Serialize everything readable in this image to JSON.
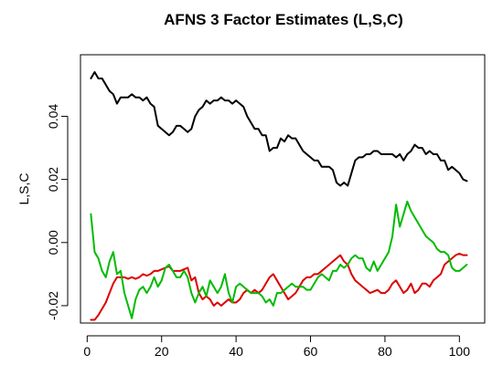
{
  "chart_data": {
    "type": "line",
    "title": "AFNS 3 Factor Estimates (L,S,C)",
    "xlabel": "",
    "ylabel": "L,S,C",
    "xlim": [
      -1.8,
      106.8
    ],
    "ylim": [
      -0.0255,
      0.0595
    ],
    "x_ticks": [
      0,
      20,
      40,
      60,
      80,
      100
    ],
    "x_tick_labels": [
      "0",
      "20",
      "40",
      "60",
      "80",
      "100"
    ],
    "y_ticks": [
      -0.02,
      0.0,
      0.02,
      0.04
    ],
    "y_tick_labels": [
      "-0.02",
      "0.00",
      "0.02",
      "0.04"
    ],
    "grid": false,
    "legend": "none",
    "series": [
      {
        "color": "#000000",
        "x": [
          1,
          2,
          3,
          4,
          5,
          6,
          7,
          8,
          9,
          10,
          11,
          12,
          13,
          14,
          15,
          16,
          17,
          18,
          19,
          20,
          21,
          22,
          23,
          24,
          25,
          26,
          27,
          28,
          29,
          30,
          31,
          32,
          33,
          34,
          35,
          36,
          37,
          38,
          39,
          40,
          41,
          42,
          43,
          44,
          45,
          46,
          47,
          48,
          49,
          50,
          51,
          52,
          53,
          54,
          55,
          56,
          57,
          58,
          59,
          60,
          61,
          62,
          63,
          64,
          65,
          66,
          67,
          68,
          69,
          70,
          71,
          72,
          73,
          74,
          75,
          76,
          77,
          78,
          79,
          80,
          81,
          82,
          83,
          84,
          85,
          86,
          87,
          88,
          89,
          90,
          91,
          92,
          93,
          94,
          95,
          96,
          97,
          98,
          99,
          100,
          101,
          102
        ],
        "values": [
          0.052,
          0.054,
          0.052,
          0.052,
          0.05,
          0.048,
          0.047,
          0.044,
          0.046,
          0.046,
          0.046,
          0.047,
          0.046,
          0.046,
          0.045,
          0.046,
          0.044,
          0.043,
          0.037,
          0.036,
          0.035,
          0.034,
          0.035,
          0.037,
          0.037,
          0.036,
          0.035,
          0.036,
          0.04,
          0.042,
          0.043,
          0.045,
          0.044,
          0.045,
          0.045,
          0.046,
          0.045,
          0.045,
          0.044,
          0.045,
          0.044,
          0.043,
          0.04,
          0.038,
          0.036,
          0.036,
          0.034,
          0.034,
          0.029,
          0.03,
          0.03,
          0.033,
          0.032,
          0.034,
          0.033,
          0.033,
          0.031,
          0.029,
          0.028,
          0.027,
          0.026,
          0.026,
          0.024,
          0.024,
          0.024,
          0.023,
          0.019,
          0.018,
          0.019,
          0.018,
          0.022,
          0.026,
          0.027,
          0.027,
          0.028,
          0.028,
          0.029,
          0.029,
          0.028,
          0.028,
          0.028,
          0.028,
          0.027,
          0.028,
          0.026,
          0.028,
          0.029,
          0.031,
          0.03,
          0.03,
          0.028,
          0.029,
          0.028,
          0.028,
          0.026,
          0.026,
          0.023,
          0.024,
          0.023,
          0.022,
          0.02,
          0.0195
        ]
      },
      {
        "color": "#dd0000",
        "x": [
          1,
          2,
          3,
          4,
          5,
          6,
          7,
          8,
          9,
          10,
          11,
          12,
          13,
          14,
          15,
          16,
          17,
          18,
          19,
          20,
          21,
          22,
          23,
          24,
          25,
          26,
          27,
          28,
          29,
          30,
          31,
          32,
          33,
          34,
          35,
          36,
          37,
          38,
          39,
          40,
          41,
          42,
          43,
          44,
          45,
          46,
          47,
          48,
          49,
          50,
          51,
          52,
          53,
          54,
          55,
          56,
          57,
          58,
          59,
          60,
          61,
          62,
          63,
          64,
          65,
          66,
          67,
          68,
          69,
          70,
          71,
          72,
          73,
          74,
          75,
          76,
          77,
          78,
          79,
          80,
          81,
          82,
          83,
          84,
          85,
          86,
          87,
          88,
          89,
          90,
          91,
          92,
          93,
          94,
          95,
          96,
          97,
          98,
          99,
          100,
          101,
          102
        ],
        "values": [
          -0.0245,
          -0.0245,
          -0.023,
          -0.021,
          -0.019,
          -0.016,
          -0.013,
          -0.011,
          -0.011,
          -0.011,
          -0.0115,
          -0.011,
          -0.0115,
          -0.011,
          -0.01,
          -0.0105,
          -0.01,
          -0.009,
          -0.009,
          -0.0085,
          -0.008,
          -0.0075,
          -0.009,
          -0.009,
          -0.009,
          -0.0085,
          -0.008,
          -0.012,
          -0.011,
          -0.016,
          -0.018,
          -0.017,
          -0.018,
          -0.02,
          -0.019,
          -0.02,
          -0.019,
          -0.018,
          -0.019,
          -0.019,
          -0.018,
          -0.016,
          -0.015,
          -0.016,
          -0.015,
          -0.016,
          -0.015,
          -0.013,
          -0.011,
          -0.01,
          -0.012,
          -0.014,
          -0.016,
          -0.018,
          -0.017,
          -0.016,
          -0.014,
          -0.012,
          -0.011,
          -0.011,
          -0.01,
          -0.01,
          -0.009,
          -0.008,
          -0.007,
          -0.006,
          -0.005,
          -0.004,
          -0.006,
          -0.007,
          -0.01,
          -0.012,
          -0.013,
          -0.014,
          -0.015,
          -0.016,
          -0.0155,
          -0.015,
          -0.016,
          -0.016,
          -0.015,
          -0.013,
          -0.012,
          -0.014,
          -0.016,
          -0.015,
          -0.013,
          -0.016,
          -0.015,
          -0.013,
          -0.013,
          -0.014,
          -0.012,
          -0.011,
          -0.01,
          -0.007,
          -0.006,
          -0.005,
          -0.004,
          -0.0035,
          -0.004,
          -0.004
        ]
      },
      {
        "color": "#00bb00",
        "x": [
          1,
          2,
          3,
          4,
          5,
          6,
          7,
          8,
          9,
          10,
          11,
          12,
          13,
          14,
          15,
          16,
          17,
          18,
          19,
          20,
          21,
          22,
          23,
          24,
          25,
          26,
          27,
          28,
          29,
          30,
          31,
          32,
          33,
          34,
          35,
          36,
          37,
          38,
          39,
          40,
          41,
          42,
          43,
          44,
          45,
          46,
          47,
          48,
          49,
          50,
          51,
          52,
          53,
          54,
          55,
          56,
          57,
          58,
          59,
          60,
          61,
          62,
          63,
          64,
          65,
          66,
          67,
          68,
          69,
          70,
          71,
          72,
          73,
          74,
          75,
          76,
          77,
          78,
          79,
          80,
          81,
          82,
          83,
          84,
          85,
          86,
          87,
          88,
          89,
          90,
          91,
          92,
          93,
          94,
          95,
          96,
          97,
          98,
          99,
          100,
          101,
          102
        ],
        "values": [
          0.009,
          -0.003,
          -0.005,
          -0.009,
          -0.011,
          -0.006,
          -0.003,
          -0.01,
          -0.009,
          -0.016,
          -0.02,
          -0.024,
          -0.018,
          -0.015,
          -0.014,
          -0.016,
          -0.014,
          -0.011,
          -0.014,
          -0.012,
          -0.008,
          -0.007,
          -0.009,
          -0.011,
          -0.011,
          -0.009,
          -0.011,
          -0.016,
          -0.019,
          -0.016,
          -0.014,
          -0.017,
          -0.012,
          -0.014,
          -0.016,
          -0.014,
          -0.01,
          -0.016,
          -0.019,
          -0.014,
          -0.013,
          -0.014,
          -0.015,
          -0.016,
          -0.016,
          -0.016,
          -0.017,
          -0.019,
          -0.018,
          -0.02,
          -0.016,
          -0.016,
          -0.015,
          -0.014,
          -0.013,
          -0.014,
          -0.014,
          -0.014,
          -0.015,
          -0.015,
          -0.013,
          -0.011,
          -0.01,
          -0.011,
          -0.012,
          -0.009,
          -0.009,
          -0.007,
          -0.008,
          -0.007,
          -0.005,
          -0.004,
          -0.005,
          -0.005,
          -0.008,
          -0.009,
          -0.006,
          -0.009,
          -0.007,
          -0.005,
          -0.003,
          0.002,
          0.012,
          0.005,
          0.009,
          0.013,
          0.01,
          0.008,
          0.006,
          0.004,
          0.002,
          0.001,
          0.0,
          -0.002,
          -0.003,
          -0.003,
          -0.004,
          -0.008,
          -0.009,
          -0.009,
          -0.008,
          -0.007
        ]
      }
    ]
  }
}
